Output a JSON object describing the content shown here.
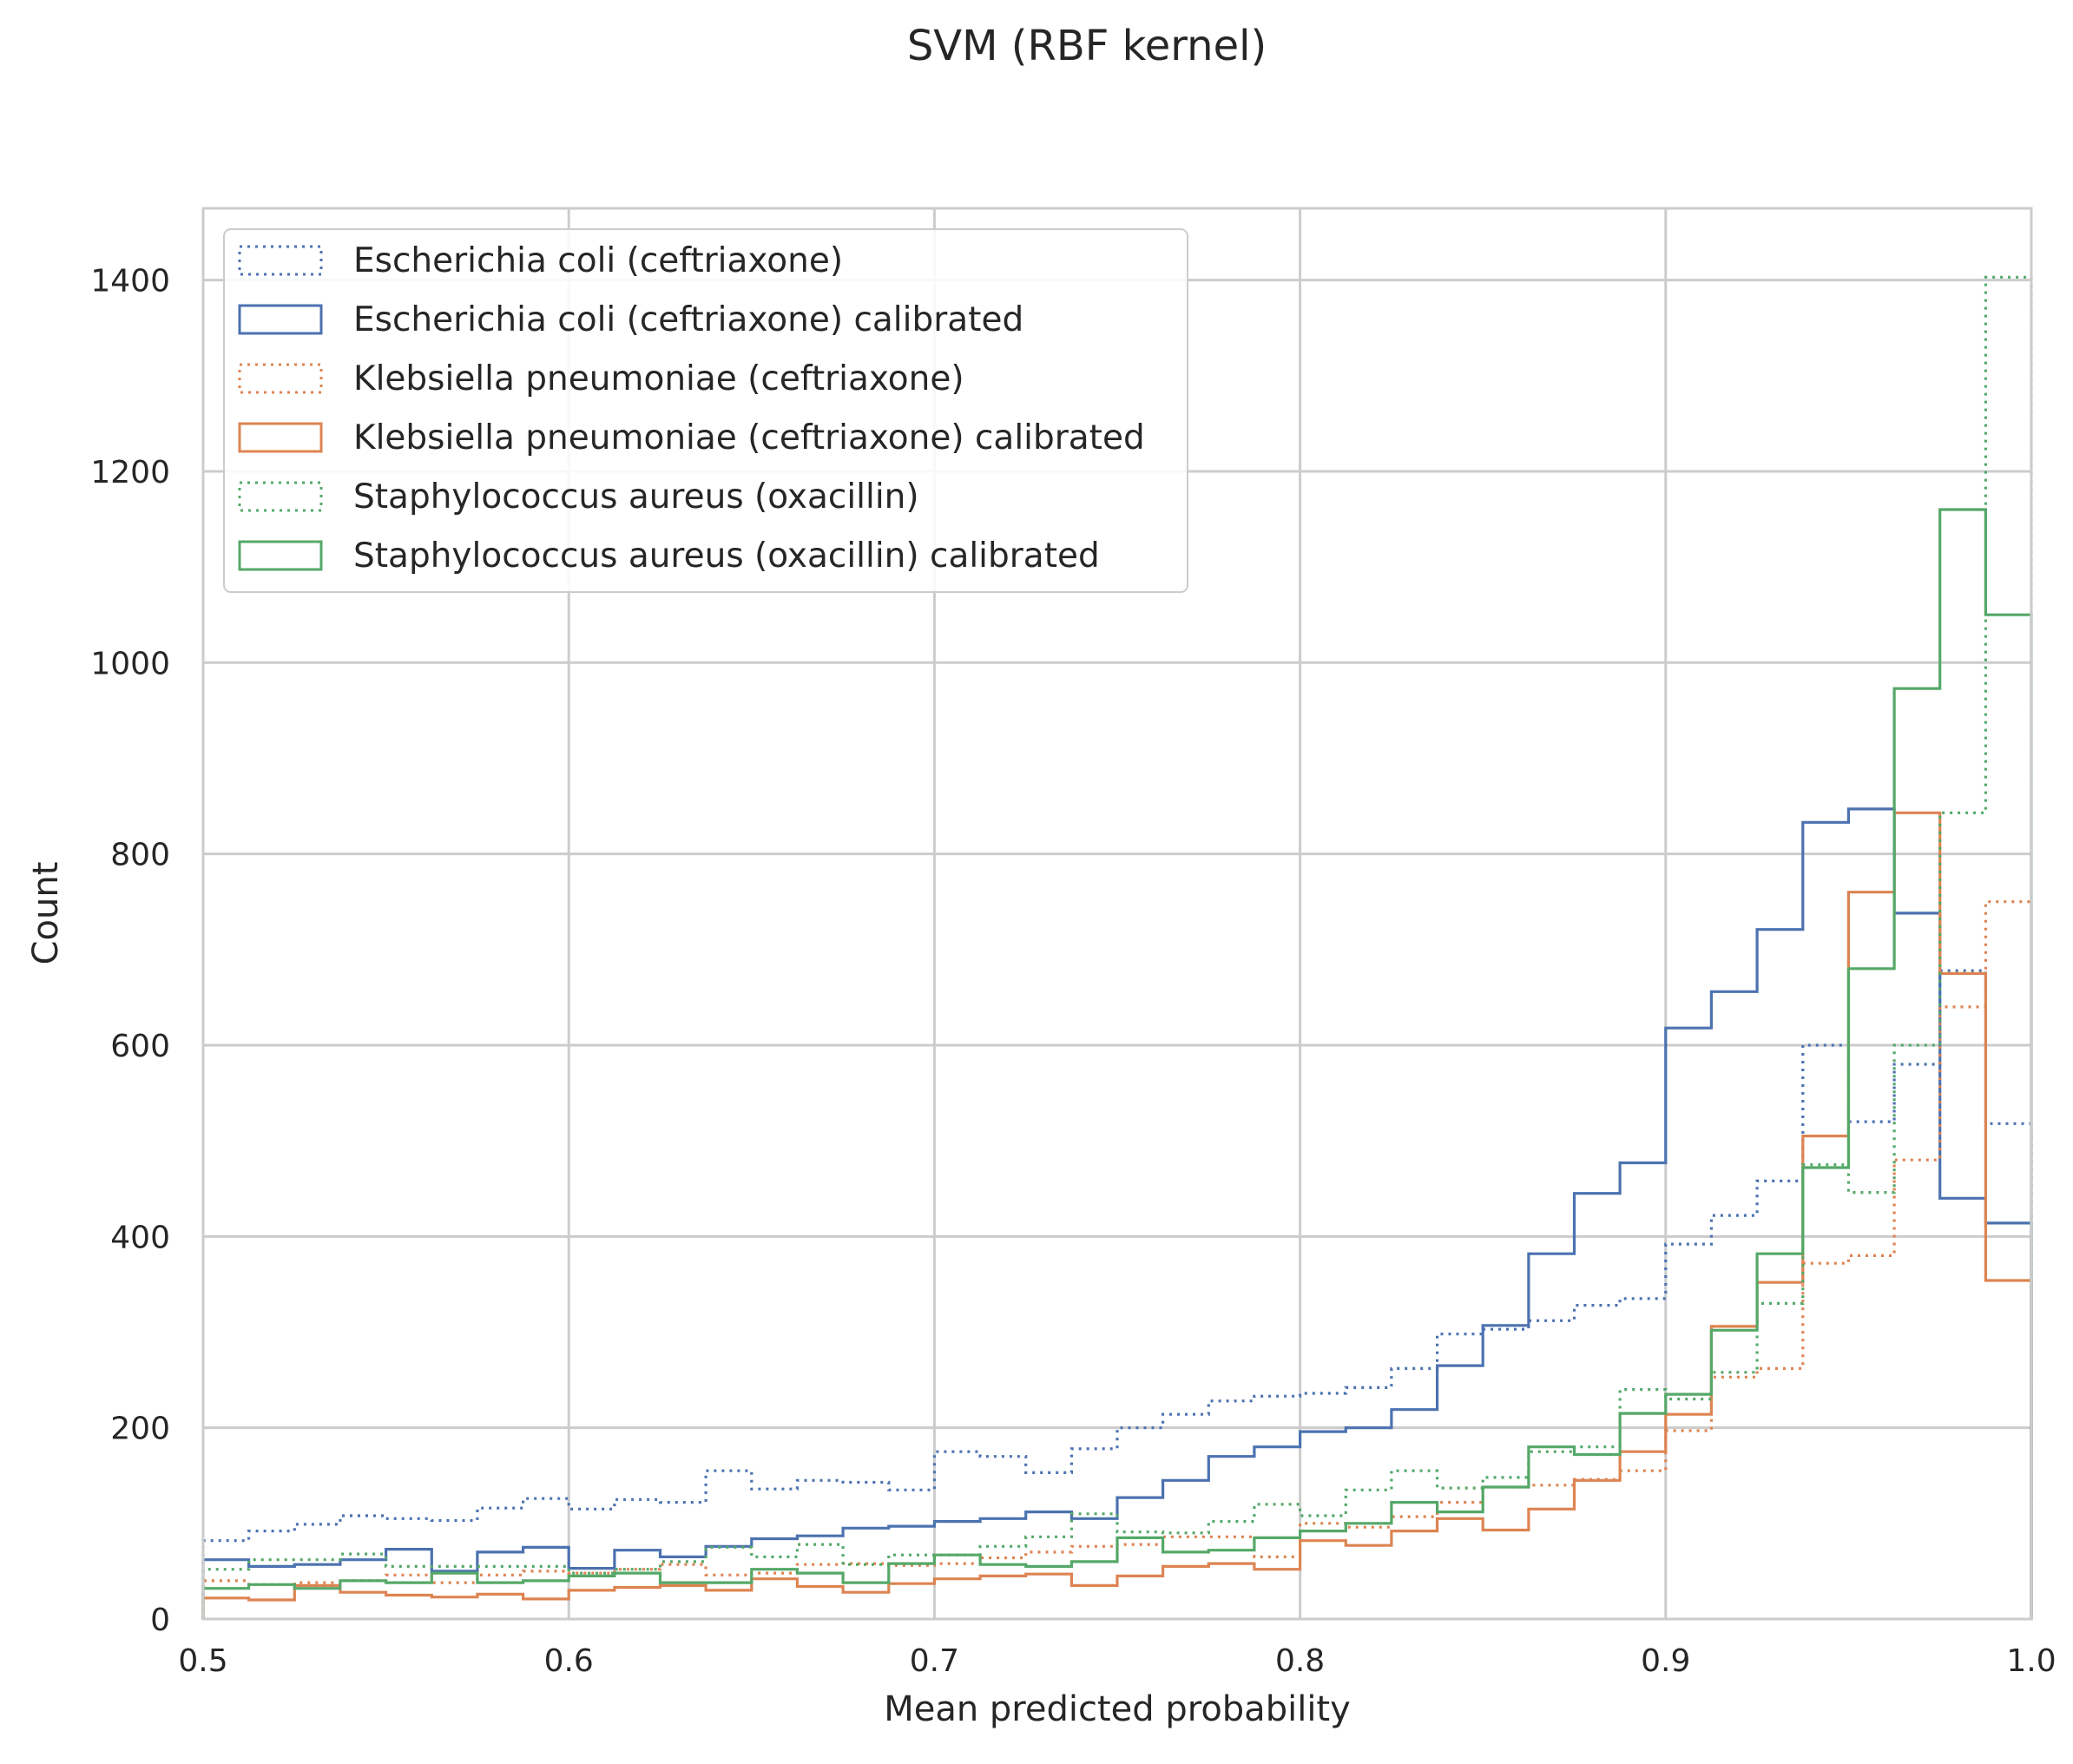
{
  "chart_data": {
    "type": "histogram-step",
    "title": "SVM (RBF kernel)",
    "xlabel": "Mean predicted probability",
    "ylabel": "Count",
    "xlim": [
      0.5,
      1.0
    ],
    "ylim": [
      0,
      1475
    ],
    "xticks": [
      0.5,
      0.6,
      0.7,
      0.8,
      0.9,
      1.0
    ],
    "xtick_labels": [
      "0.5",
      "0.6",
      "0.7",
      "0.8",
      "0.9",
      "1.0"
    ],
    "yticks": [
      0,
      200,
      400,
      600,
      800,
      1000,
      1200,
      1400
    ],
    "ytick_labels": [
      "0",
      "200",
      "400",
      "600",
      "800",
      "1000",
      "1200",
      "1400"
    ],
    "grid": true,
    "legend_position": "top-left",
    "bin_edges": [
      0.5,
      0.5125,
      0.525,
      0.5375,
      0.55,
      0.5625,
      0.575,
      0.5875,
      0.6,
      0.6125,
      0.625,
      0.6375,
      0.65,
      0.6625,
      0.675,
      0.6875,
      0.7,
      0.7125,
      0.725,
      0.7375,
      0.75,
      0.7625,
      0.775,
      0.7875,
      0.8,
      0.8125,
      0.825,
      0.8375,
      0.85,
      0.8625,
      0.875,
      0.8875,
      0.9,
      0.9125,
      0.925,
      0.9375,
      0.95,
      0.9625,
      0.975,
      0.9875,
      1.0
    ],
    "series": [
      {
        "name": "Escherichia coli (ceftriaxone)",
        "color": "#4c72b0",
        "style": "dotted",
        "values": [
          82,
          92,
          99,
          108,
          105,
          103,
          116,
          126,
          115,
          125,
          122,
          155,
          136,
          145,
          143,
          135,
          175,
          170,
          153,
          178,
          200,
          214,
          228,
          233,
          236,
          242,
          262,
          298,
          303,
          312,
          328,
          335,
          392,
          422,
          458,
          600,
          520,
          580,
          678,
          518
        ]
      },
      {
        "name": "Escherichia coli (ceftriaxone) calibrated",
        "color": "#4c72b0",
        "style": "solid",
        "values": [
          62,
          55,
          57,
          62,
          73,
          50,
          70,
          75,
          53,
          72,
          65,
          76,
          84,
          87,
          95,
          97,
          102,
          105,
          112,
          105,
          127,
          145,
          170,
          180,
          196,
          200,
          219,
          265,
          307,
          382,
          445,
          477,
          618,
          656,
          721,
          833,
          847,
          738,
          440,
          414
        ]
      },
      {
        "name": "Klebsiella pneumoniae (ceftriaxone)",
        "color": "#dd8452",
        "style": "dotted",
        "values": [
          40,
          36,
          38,
          40,
          46,
          38,
          46,
          50,
          48,
          52,
          57,
          46,
          48,
          57,
          58,
          56,
          58,
          64,
          70,
          76,
          78,
          86,
          86,
          65,
          100,
          96,
          107,
          122,
          138,
          140,
          146,
          155,
          197,
          253,
          262,
          372,
          380,
          480,
          640,
          750
        ]
      },
      {
        "name": "Klebsiella pneumoniae (ceftriaxone) calibrated",
        "color": "#dd8452",
        "style": "solid",
        "values": [
          22,
          20,
          35,
          28,
          25,
          23,
          26,
          21,
          30,
          33,
          35,
          30,
          42,
          34,
          28,
          37,
          42,
          45,
          47,
          35,
          45,
          55,
          58,
          52,
          82,
          77,
          92,
          105,
          93,
          115,
          145,
          175,
          214,
          306,
          352,
          505,
          760,
          843,
          675,
          354
        ]
      },
      {
        "name": "Staphylococcus aureus (oxacillin)",
        "color": "#55a868",
        "style": "dotted",
        "values": [
          52,
          62,
          62,
          68,
          55,
          55,
          55,
          55,
          48,
          52,
          60,
          75,
          65,
          78,
          57,
          67,
          67,
          76,
          86,
          110,
          91,
          90,
          102,
          120,
          108,
          135,
          155,
          137,
          148,
          175,
          180,
          240,
          230,
          258,
          330,
          475,
          446,
          600,
          843,
          1403
        ]
      },
      {
        "name": "Staphylococcus aureus (oxacillin) calibrated",
        "color": "#55a868",
        "style": "solid",
        "values": [
          32,
          36,
          32,
          40,
          38,
          48,
          38,
          40,
          45,
          48,
          38,
          38,
          52,
          48,
          38,
          58,
          67,
          57,
          55,
          60,
          85,
          70,
          72,
          85,
          92,
          100,
          122,
          112,
          138,
          180,
          172,
          215,
          235,
          302,
          382,
          472,
          680,
          973,
          1160,
          1050
        ]
      }
    ]
  }
}
